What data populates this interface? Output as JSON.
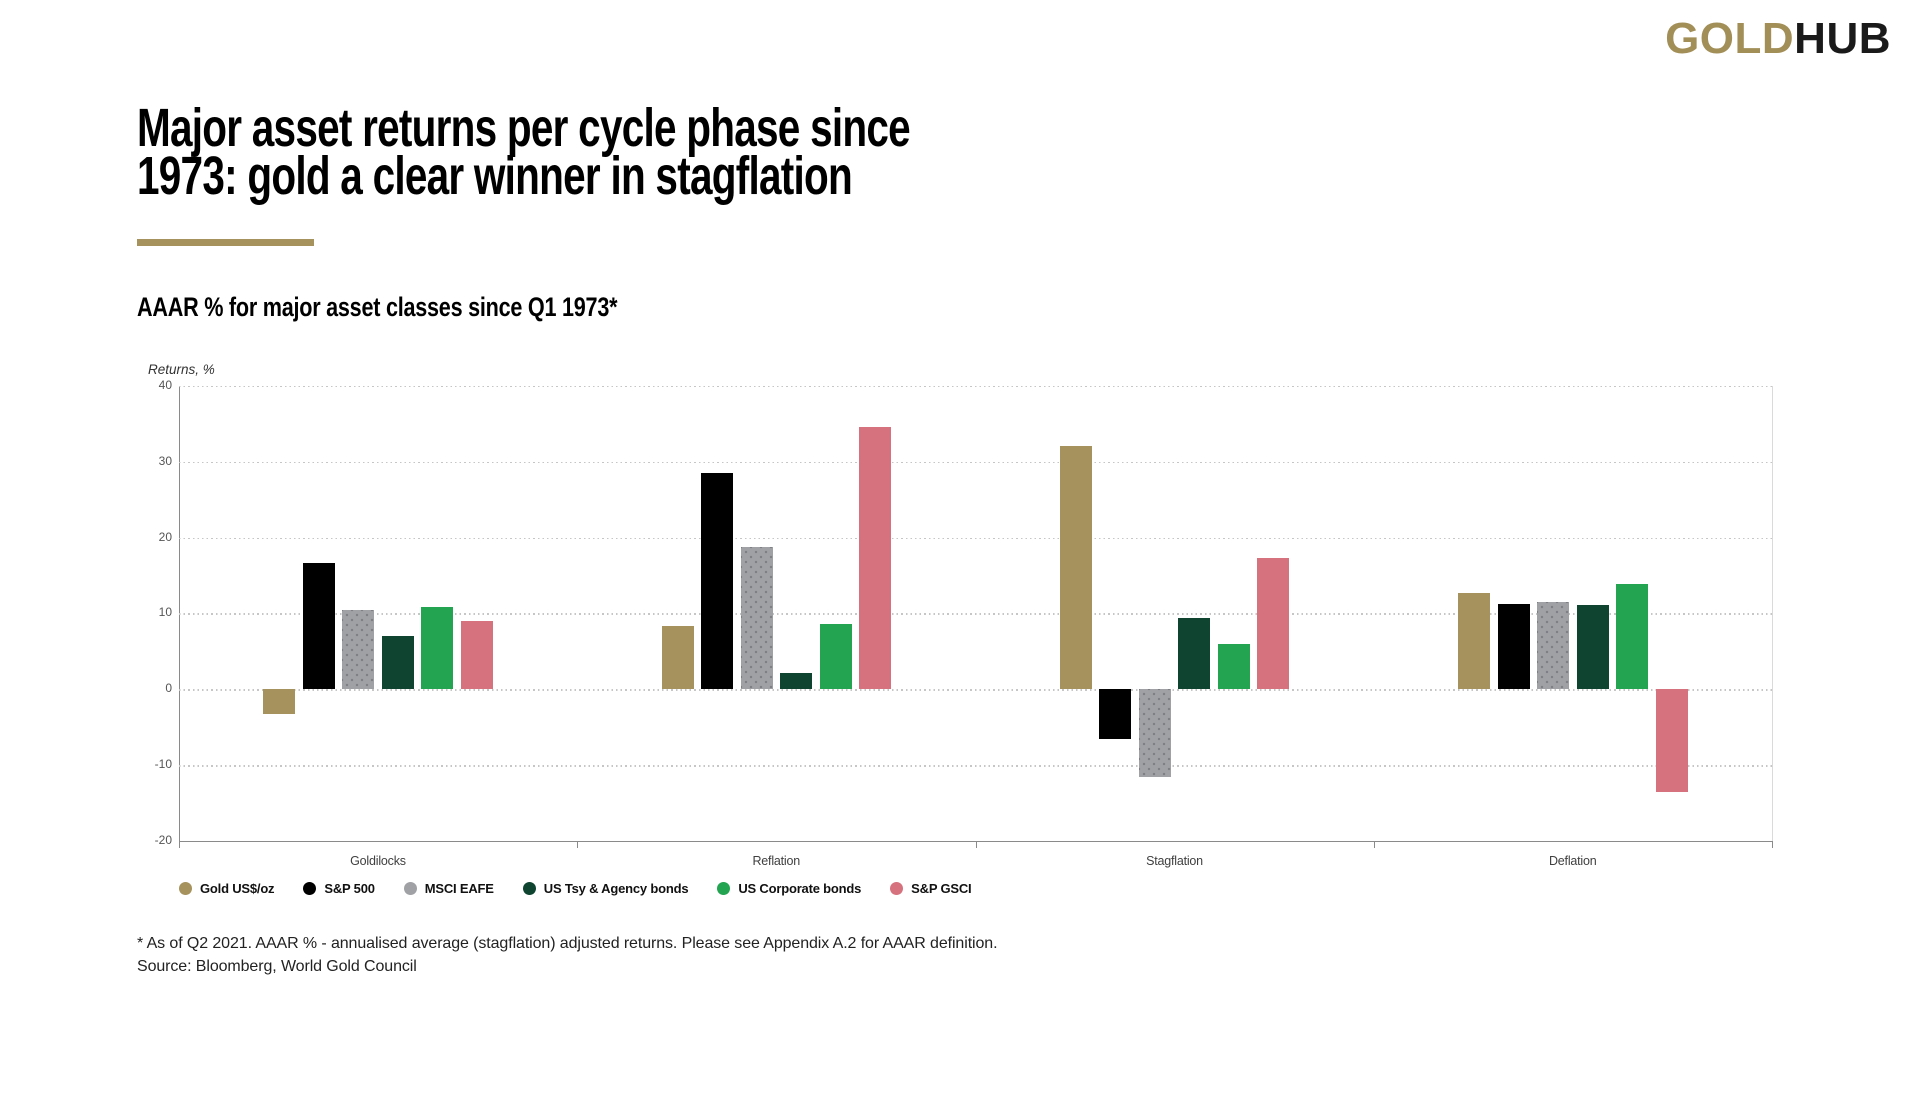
{
  "logo": {
    "part1": "GOLD",
    "part2": "HUB",
    "color_gold": "#A28F58",
    "color_dark": "#1A1A1A"
  },
  "title": {
    "line1": "Major asset returns per cycle phase since",
    "line2": "1973: gold a clear winner in stagflation",
    "underline_color": "#A6925C"
  },
  "subtitle": "AAAR % for major asset classes since Q1 1973*",
  "chart_data": {
    "type": "bar",
    "title": "AAAR % for major asset classes since Q1 1973*",
    "ylabel": "Returns, %",
    "xlabel": "",
    "ylim": [
      -20,
      40
    ],
    "yticks": [
      40,
      30,
      20,
      10,
      0,
      -10,
      -20
    ],
    "grid": "horizontal-dotted",
    "legend_position": "bottom",
    "categories": [
      "Goldilocks",
      "Reflation",
      "Stagflation",
      "Deflation"
    ],
    "series": [
      {
        "name": "Gold US$/oz",
        "color": "#A6925C",
        "values": [
          -3.2,
          8.3,
          32.0,
          12.7
        ]
      },
      {
        "name": "S&P 500",
        "color": "#000000",
        "values": [
          16.6,
          28.5,
          -6.6,
          11.3
        ]
      },
      {
        "name": "MSCI EAFE",
        "color": "#A0A1A4",
        "pattern": "dots",
        "values": [
          10.4,
          18.7,
          -11.5,
          11.5
        ]
      },
      {
        "name": "US Tsy & Agency bonds",
        "color": "#0F4431",
        "values": [
          7.0,
          2.2,
          9.4,
          11.1
        ]
      },
      {
        "name": "US Corporate bonds",
        "color": "#22A450",
        "values": [
          10.8,
          8.6,
          6.0,
          13.9
        ]
      },
      {
        "name": "S&P GSCI",
        "color": "#D6717E",
        "values": [
          9.0,
          34.6,
          17.3,
          -13.5
        ]
      }
    ]
  },
  "footnote": {
    "line1": "* As of Q2 2021. AAAR % - annualised average (stagflation) adjusted returns. Please see Appendix A.2 for AAAR definition.",
    "line2": "Source: Bloomberg, World Gold Council"
  }
}
